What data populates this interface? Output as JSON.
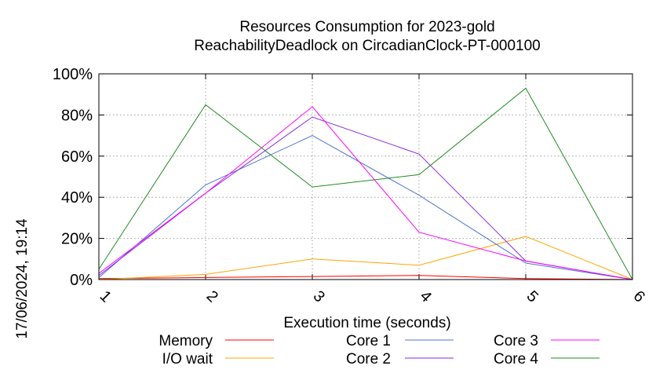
{
  "chart_data": {
    "type": "line",
    "title_lines": [
      "Resources Consumption for 2023-gold",
      "ReachabilityDeadlock on CircadianClock-PT-000100"
    ],
    "xlabel": "Execution time (seconds)",
    "ylabel": "",
    "side_label": "17/06/2024, 19:14",
    "x": [
      1,
      2,
      3,
      4,
      5,
      6
    ],
    "xlim": [
      1,
      6
    ],
    "ylim": [
      0,
      100
    ],
    "y_ticks": [
      "0%",
      "20%",
      "40%",
      "60%",
      "80%",
      "100%"
    ],
    "x_ticks": [
      "1",
      "2",
      "3",
      "4",
      "5",
      "6"
    ],
    "grid": true,
    "legend_position": "bottom",
    "series": [
      {
        "name": "Memory",
        "color": "#ff0000",
        "values": [
          0.5,
          1,
          1.5,
          2,
          0.5,
          0
        ]
      },
      {
        "name": "I/O wait",
        "color": "#ffa500",
        "values": [
          0,
          2.5,
          10,
          7,
          21,
          0
        ]
      },
      {
        "name": "Core 1",
        "color": "#4f76c9",
        "values": [
          1,
          46,
          70,
          41,
          8,
          0
        ]
      },
      {
        "name": "Core 2",
        "color": "#8a2be2",
        "values": [
          2,
          42,
          79,
          61,
          9,
          0
        ]
      },
      {
        "name": "Core 3",
        "color": "#ff00ff",
        "values": [
          3,
          42,
          84,
          23,
          9,
          0
        ]
      },
      {
        "name": "Core 4",
        "color": "#228b22",
        "values": [
          5,
          85,
          45,
          51,
          93,
          0
        ]
      }
    ]
  }
}
